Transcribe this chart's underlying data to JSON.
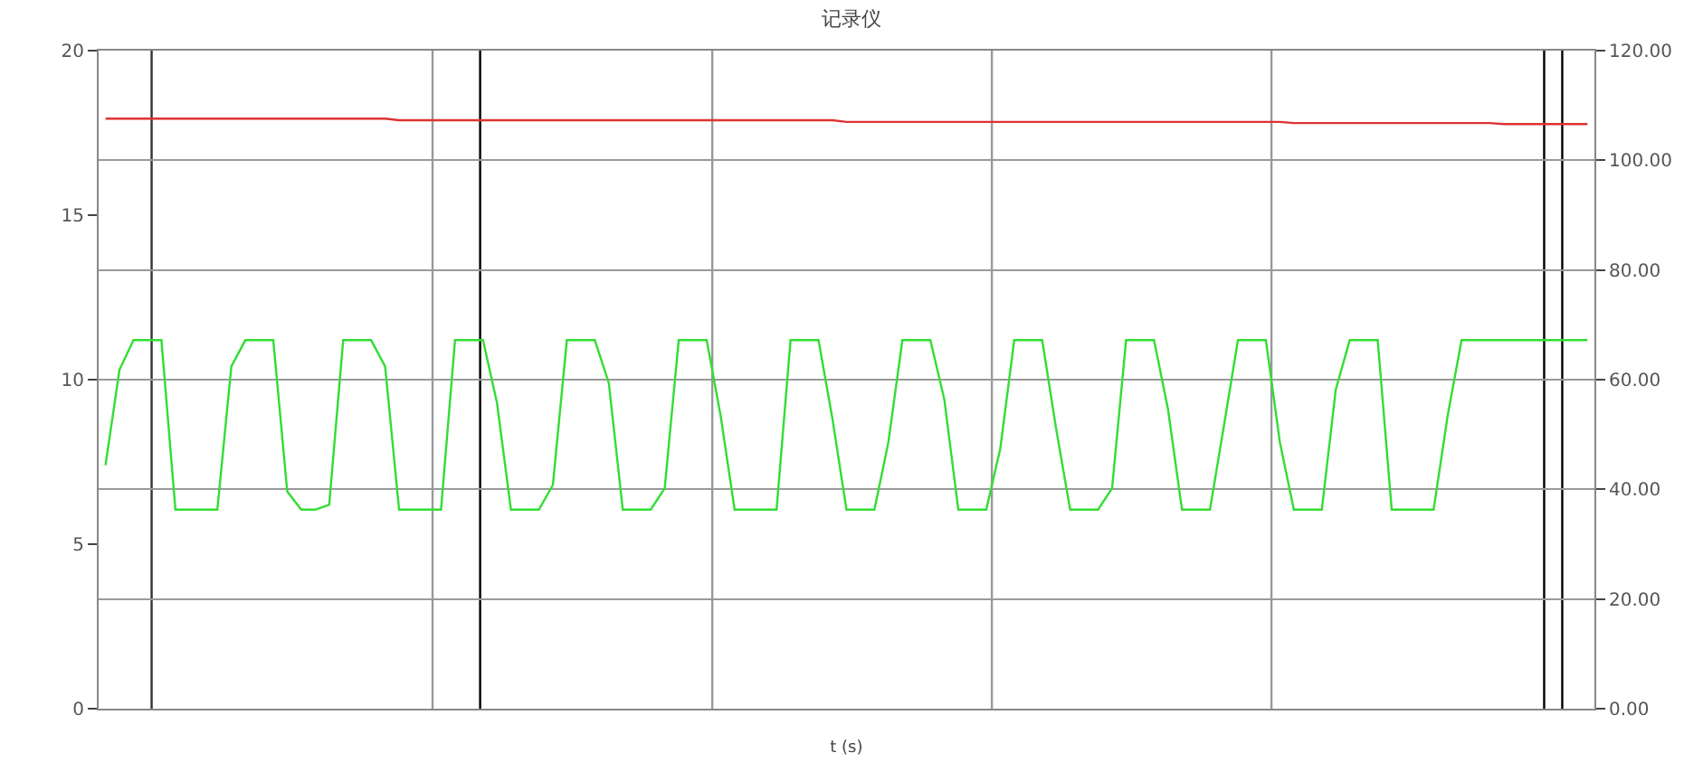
{
  "chart_data": {
    "type": "line",
    "title": "记录仪",
    "xlabel": "t (s)",
    "categories": [
      null,
      null,
      null,
      null,
      null,
      null,
      null,
      null,
      null,
      null,
      null,
      null,
      null,
      null,
      null,
      null,
      null,
      null,
      null,
      null,
      null,
      null,
      null,
      null,
      null,
      null,
      null,
      null,
      null,
      null,
      null,
      null,
      null,
      null,
      null,
      null,
      null,
      null,
      null,
      null,
      null,
      null,
      null,
      null,
      null,
      null,
      null,
      null,
      null,
      null,
      null,
      null,
      null,
      null,
      null,
      null,
      null,
      null,
      null,
      null,
      null,
      null,
      null,
      null,
      null,
      null,
      null,
      null,
      null,
      null,
      null,
      null,
      null,
      null,
      null,
      null,
      null,
      null,
      null,
      null,
      null,
      null,
      null,
      null,
      null,
      null,
      null,
      null,
      null,
      null,
      null,
      null,
      null,
      null,
      null,
      null,
      null,
      null,
      null,
      null,
      null,
      null,
      null,
      null,
      null,
      null,
      null
    ],
    "ylim": [
      0,
      20
    ],
    "yticks": [
      0,
      5,
      10,
      15,
      20
    ],
    "y2lim": [
      0,
      120
    ],
    "y2ticks": [
      {
        "value": 0,
        "label": "0.00"
      },
      {
        "value": 20,
        "label": "20.00"
      },
      {
        "value": 40,
        "label": "40.00"
      },
      {
        "value": 60,
        "label": "60.00"
      },
      {
        "value": 80,
        "label": "80.00"
      },
      {
        "value": 100,
        "label": "100.00"
      },
      {
        "value": 120,
        "label": "120.00"
      }
    ],
    "grid": "y",
    "marker": "none",
    "line_style": "solid",
    "series": [
      {
        "color": "#33dd33",
        "axis": "y",
        "values": [
          7.4,
          10.3,
          11.2,
          11.2,
          11.2,
          6.05,
          6.05,
          6.05,
          6.05,
          10.4,
          11.2,
          11.2,
          11.2,
          6.6,
          6.05,
          6.05,
          6.2,
          11.2,
          11.2,
          11.2,
          10.4,
          6.05,
          6.05,
          6.05,
          6.05,
          11.2,
          11.2,
          11.2,
          9.3,
          6.05,
          6.05,
          6.05,
          6.8,
          11.2,
          11.2,
          11.2,
          9.9,
          6.05,
          6.05,
          6.05,
          6.7,
          11.2,
          11.2,
          11.2,
          8.9,
          6.05,
          6.05,
          6.05,
          6.05,
          11.2,
          11.2,
          11.2,
          8.8,
          6.05,
          6.05,
          6.05,
          8.1,
          11.2,
          11.2,
          11.2,
          9.4,
          6.05,
          6.05,
          6.05,
          7.9,
          11.2,
          11.2,
          11.2,
          8.5,
          6.05,
          6.05,
          6.05,
          6.7,
          11.2,
          11.2,
          11.2,
          9.1,
          6.05,
          6.05,
          6.05,
          8.6,
          11.2,
          11.2,
          11.2,
          8.1,
          6.05,
          6.05,
          6.05,
          9.7,
          11.2,
          11.2,
          11.2,
          6.05,
          6.05,
          6.05,
          6.05,
          8.9,
          11.2,
          11.2,
          11.2,
          11.2,
          11.2,
          11.2,
          11.2,
          11.2,
          11.2,
          11.2
        ]
      },
      {
        "color": "#dd3333",
        "axis": "y2",
        "values": [
          107.6,
          107.6,
          107.6,
          107.6,
          107.6,
          107.6,
          107.6,
          107.6,
          107.6,
          107.6,
          107.6,
          107.6,
          107.6,
          107.6,
          107.6,
          107.6,
          107.6,
          107.6,
          107.6,
          107.6,
          107.6,
          107.3,
          107.3,
          107.3,
          107.3,
          107.3,
          107.3,
          107.3,
          107.3,
          107.3,
          107.3,
          107.3,
          107.3,
          107.3,
          107.3,
          107.3,
          107.3,
          107.3,
          107.3,
          107.3,
          107.3,
          107.3,
          107.3,
          107.3,
          107.3,
          107.3,
          107.3,
          107.3,
          107.3,
          107.3,
          107.3,
          107.3,
          107.3,
          107.0,
          107.0,
          107.0,
          107.0,
          107.0,
          107.0,
          107.0,
          107.0,
          107.0,
          107.0,
          107.0,
          107.0,
          107.0,
          107.0,
          107.0,
          107.0,
          107.0,
          107.0,
          107.0,
          107.0,
          107.0,
          107.0,
          107.0,
          107.0,
          107.0,
          107.0,
          107.0,
          107.0,
          107.0,
          107.0,
          107.0,
          107.0,
          106.8,
          106.8,
          106.8,
          106.8,
          106.8,
          106.8,
          106.8,
          106.8,
          106.8,
          106.8,
          106.8,
          106.8,
          106.8,
          106.8,
          106.8,
          106.6,
          106.6,
          106.6,
          106.6,
          106.6,
          106.6,
          106.6
        ]
      }
    ]
  }
}
